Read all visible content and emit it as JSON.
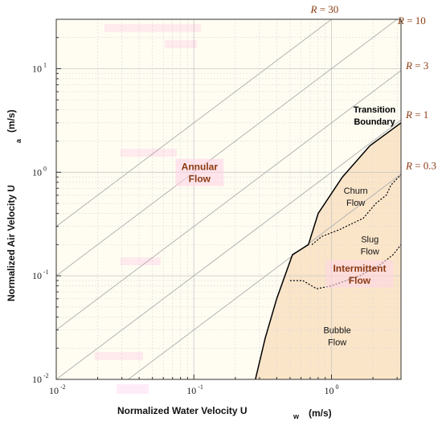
{
  "chart_data": {
    "type": "line",
    "xlabel": "Normalized Water Velocity U",
    "xlabel_sub": "w",
    "xlabel_unit": "(m/s)",
    "ylabel": "Normalized Air Velocity U",
    "ylabel_sub": "a",
    "ylabel_unit": "(m/s)",
    "x_scale": "log",
    "y_scale": "log",
    "xlim": [
      0.01,
      3.2
    ],
    "ylim": [
      0.01,
      30
    ],
    "x_ticks": [
      {
        "value": 0.01,
        "base": "10",
        "exp": "-2"
      },
      {
        "value": 0.1,
        "base": "10",
        "exp": "-1"
      },
      {
        "value": 1,
        "base": "10",
        "exp": "0"
      }
    ],
    "y_ticks": [
      {
        "value": 0.01,
        "base": "10",
        "exp": "-2"
      },
      {
        "value": 0.1,
        "base": "10",
        "exp": "-1"
      },
      {
        "value": 1,
        "base": "10",
        "exp": "0"
      },
      {
        "value": 10,
        "base": "10",
        "exp": "1"
      }
    ],
    "grid": true,
    "ratio_lines": [
      {
        "ratio": 30,
        "label_var": "R",
        "label_eq": "= 30"
      },
      {
        "ratio": 10,
        "label_var": "R",
        "label_eq": "= 10"
      },
      {
        "ratio": 3,
        "label_var": "R",
        "label_eq": "= 3"
      },
      {
        "ratio": 1,
        "label_var": "R",
        "label_eq": "= 1"
      },
      {
        "ratio": 0.3,
        "label_var": "R",
        "label_eq": "= 0.3"
      }
    ],
    "transition_boundary": {
      "label_line1": "Transition",
      "label_line2": "Boundary",
      "points": [
        [
          0.28,
          0.01
        ],
        [
          0.33,
          0.025
        ],
        [
          0.4,
          0.06
        ],
        [
          0.52,
          0.16
        ],
        [
          0.68,
          0.2
        ],
        [
          0.8,
          0.4
        ],
        [
          1.2,
          0.9
        ],
        [
          1.9,
          1.8
        ],
        [
          3.2,
          3.0
        ]
      ]
    },
    "dotted_boundaries": [
      {
        "points": [
          [
            0.72,
            0.2
          ],
          [
            0.85,
            0.24
          ],
          [
            1.15,
            0.28
          ],
          [
            1.7,
            0.36
          ],
          [
            2.1,
            0.5
          ],
          [
            2.5,
            0.6
          ],
          [
            2.7,
            0.75
          ],
          [
            3.2,
            0.95
          ]
        ]
      },
      {
        "points": [
          [
            0.5,
            0.09
          ],
          [
            0.62,
            0.09
          ],
          [
            0.78,
            0.075
          ],
          [
            1.0,
            0.08
          ],
          [
            1.6,
            0.1
          ],
          [
            2.3,
            0.13
          ],
          [
            2.8,
            0.16
          ],
          [
            3.2,
            0.2
          ]
        ]
      }
    ],
    "regions": [
      {
        "name": "annular",
        "line1": "Annular",
        "line2": "Flow",
        "x": 0.11,
        "y": 1.05
      },
      {
        "name": "churn",
        "line1": "Churn",
        "line2": "Flow",
        "x": 1.5,
        "y": 0.62
      },
      {
        "name": "slug",
        "line1": "Slug",
        "line2": "Flow",
        "x": 1.9,
        "y": 0.21
      },
      {
        "name": "intermittent",
        "line1": "Intermittent",
        "line2": "Flow",
        "x": 1.6,
        "y": 0.11
      },
      {
        "name": "bubble",
        "line1": "Bubble",
        "line2": "Flow",
        "x": 1.1,
        "y": 0.028
      }
    ],
    "colors": {
      "background_left": "#fffdf2",
      "background_right": "#fbe5c9",
      "grid_major": "#c8c8c8",
      "grid_minor": "#d8d8d8",
      "ratio_line": "#b4b4b4",
      "boundary": "#000000",
      "label_brown": "#8a3b12"
    }
  }
}
